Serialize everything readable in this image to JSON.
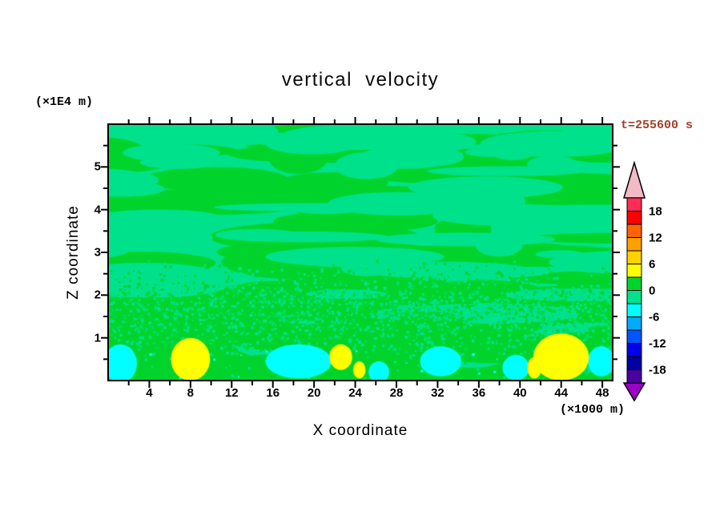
{
  "title": "vertical velocity",
  "annotations": {
    "y_unit_label": "(×1E4 m)",
    "x_unit_label": "(×1000 m)",
    "time_label": "t=255600 s",
    "time_label_color": "#A04028"
  },
  "axes": {
    "x": {
      "label": "X coordinate",
      "range": [
        0,
        49
      ],
      "ticks": [
        4,
        8,
        12,
        16,
        20,
        24,
        28,
        32,
        36,
        40,
        44,
        48
      ],
      "minor_step": 2
    },
    "z": {
      "label": "Z coordinate",
      "range": [
        0,
        6
      ],
      "ticks": [
        1,
        2,
        3,
        4,
        5
      ],
      "minor_step": 0.5
    }
  },
  "chart_data": {
    "type": "filled_contour",
    "field_name": "vertical velocity",
    "time_seconds": 255600,
    "contour_interval": 3,
    "x_range": [
      0,
      49
    ],
    "z_range": [
      0,
      6
    ],
    "description": "Vertical cross-section of vertical velocity, mostly near zero: mottled interleaved patches of 0..+3 (green) and -3..0 (sea green) aloft, a speckled mixed band around z=1-2.5, with weak updraft cores (+3..+6, yellow) and downdraft patches (-6..-3, cyan) below z=1.",
    "colorbar": {
      "tick_labels": [
        18,
        12,
        6,
        0,
        -6,
        -12,
        -18
      ],
      "arrow_top_color": "#F2B9C6",
      "arrow_bottom_color": "#9C00C8",
      "segments_top_to_bottom": [
        {
          "from": 18,
          "to": 21,
          "color": "#FF2D55"
        },
        {
          "from": 15,
          "to": 18,
          "color": "#FF0000"
        },
        {
          "from": 12,
          "to": 15,
          "color": "#FF6400"
        },
        {
          "from": 9,
          "to": 12,
          "color": "#FFA000"
        },
        {
          "from": 6,
          "to": 9,
          "color": "#FFD200"
        },
        {
          "from": 3,
          "to": 6,
          "color": "#FFFF00"
        },
        {
          "from": 0,
          "to": 3,
          "color": "#00D42C"
        },
        {
          "from": -3,
          "to": 0,
          "color": "#00E18C"
        },
        {
          "from": -6,
          "to": -3,
          "color": "#00FFFF"
        },
        {
          "from": -9,
          "to": -6,
          "color": "#00AAFF"
        },
        {
          "from": -12,
          "to": -9,
          "color": "#0055FF"
        },
        {
          "from": -15,
          "to": -12,
          "color": "#0000E6"
        },
        {
          "from": -18,
          "to": -15,
          "color": "#0000A0"
        },
        {
          "from": -21,
          "to": -18,
          "color": "#4B00A0"
        }
      ]
    },
    "features": [
      {
        "kind": "downdraft",
        "level_from": -6,
        "level_to": -3,
        "x": 1.2,
        "z": 0.4,
        "rx": 1.6,
        "rz": 0.45
      },
      {
        "kind": "downdraft",
        "level_from": -6,
        "level_to": -3,
        "x": 18.5,
        "z": 0.45,
        "rx": 3.2,
        "rz": 0.4
      },
      {
        "kind": "downdraft",
        "level_from": -6,
        "level_to": -3,
        "x": 26.3,
        "z": 0.2,
        "rx": 1.0,
        "rz": 0.25
      },
      {
        "kind": "downdraft",
        "level_from": -6,
        "level_to": -3,
        "x": 32.3,
        "z": 0.45,
        "rx": 2.0,
        "rz": 0.35
      },
      {
        "kind": "downdraft",
        "level_from": -6,
        "level_to": -3,
        "x": 39.6,
        "z": 0.3,
        "rx": 1.3,
        "rz": 0.3
      },
      {
        "kind": "downdraft",
        "level_from": -6,
        "level_to": -3,
        "x": 47.9,
        "z": 0.45,
        "rx": 1.3,
        "rz": 0.35
      },
      {
        "kind": "updraft",
        "level_from": 3,
        "level_to": 6,
        "x": 8.0,
        "z": 0.5,
        "rx": 1.9,
        "rz": 0.5
      },
      {
        "kind": "updraft",
        "level_from": 3,
        "level_to": 6,
        "x": 22.6,
        "z": 0.55,
        "rx": 1.1,
        "rz": 0.3
      },
      {
        "kind": "updraft",
        "level_from": 3,
        "level_to": 6,
        "x": 24.4,
        "z": 0.25,
        "rx": 0.6,
        "rz": 0.2
      },
      {
        "kind": "updraft",
        "level_from": 3,
        "level_to": 6,
        "x": 41.4,
        "z": 0.3,
        "rx": 0.7,
        "rz": 0.25
      },
      {
        "kind": "updraft",
        "level_from": 3,
        "level_to": 6,
        "x": 44.0,
        "z": 0.55,
        "rx": 2.7,
        "rz": 0.55
      }
    ]
  }
}
